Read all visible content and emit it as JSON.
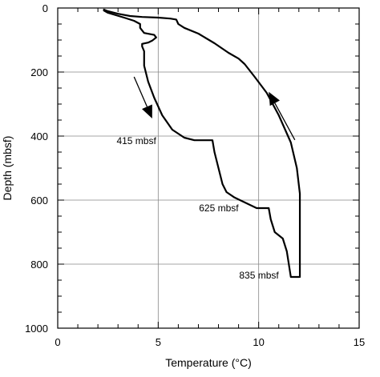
{
  "chart_data": {
    "type": "line",
    "xlabel": "Temperature (°C)",
    "ylabel": "Depth (mbsf)",
    "xlim": [
      0,
      15
    ],
    "ylim": [
      0,
      1000
    ],
    "y_inverted": true,
    "x_major_ticks": [
      0,
      5,
      10,
      15
    ],
    "y_major_ticks": [
      0,
      200,
      400,
      600,
      800,
      1000
    ],
    "grid": "major",
    "series": [
      {
        "points": [
          [
            2.3,
            5
          ],
          [
            2.5,
            10
          ],
          [
            3.0,
            18
          ],
          [
            3.6,
            25
          ],
          [
            4.2,
            28
          ],
          [
            5.0,
            30
          ],
          [
            5.6,
            33
          ],
          [
            5.9,
            36
          ],
          [
            6.0,
            50
          ],
          [
            6.3,
            62
          ],
          [
            7.0,
            80
          ],
          [
            7.8,
            110
          ],
          [
            8.5,
            140
          ],
          [
            9.0,
            158
          ],
          [
            9.3,
            175
          ],
          [
            9.8,
            215
          ],
          [
            10.4,
            265
          ],
          [
            11.0,
            335
          ],
          [
            11.6,
            420
          ],
          [
            11.9,
            500
          ],
          [
            12.05,
            580
          ],
          [
            12.05,
            840
          ]
        ]
      },
      {
        "points": [
          [
            2.3,
            8
          ],
          [
            2.5,
            15
          ],
          [
            3.3,
            30
          ],
          [
            3.8,
            40
          ],
          [
            4.1,
            50
          ],
          [
            4.1,
            62
          ],
          [
            4.3,
            78
          ],
          [
            4.8,
            84
          ],
          [
            4.9,
            92
          ],
          [
            4.7,
            102
          ],
          [
            4.5,
            108
          ],
          [
            4.2,
            112
          ],
          [
            4.2,
            120
          ],
          [
            4.3,
            135
          ],
          [
            4.3,
            150
          ],
          [
            4.3,
            180
          ],
          [
            4.5,
            230
          ],
          [
            4.8,
            280
          ],
          [
            5.2,
            335
          ],
          [
            5.7,
            380
          ],
          [
            6.3,
            405
          ],
          [
            6.8,
            413
          ],
          [
            7.7,
            413
          ],
          [
            7.8,
            450
          ],
          [
            8.0,
            500
          ],
          [
            8.2,
            550
          ],
          [
            8.4,
            575
          ],
          [
            8.8,
            592
          ],
          [
            9.9,
            625
          ],
          [
            10.5,
            625
          ],
          [
            10.6,
            660
          ],
          [
            10.8,
            700
          ],
          [
            11.2,
            720
          ],
          [
            11.4,
            760
          ],
          [
            11.5,
            800
          ],
          [
            11.6,
            840
          ],
          [
            12.0,
            840
          ]
        ]
      }
    ],
    "annotations": [
      {
        "text": "415 mbsf",
        "x": 4.9,
        "y": 415
      },
      {
        "text": "625 mbsf",
        "x": 9.0,
        "y": 625
      },
      {
        "text": "835 mbsf",
        "x": 11.0,
        "y": 835
      }
    ],
    "arrows": [
      {
        "from": [
          3.8,
          215
        ],
        "to": [
          4.7,
          345
        ]
      },
      {
        "from": [
          11.8,
          412
        ],
        "to": [
          10.5,
          262
        ]
      }
    ]
  }
}
